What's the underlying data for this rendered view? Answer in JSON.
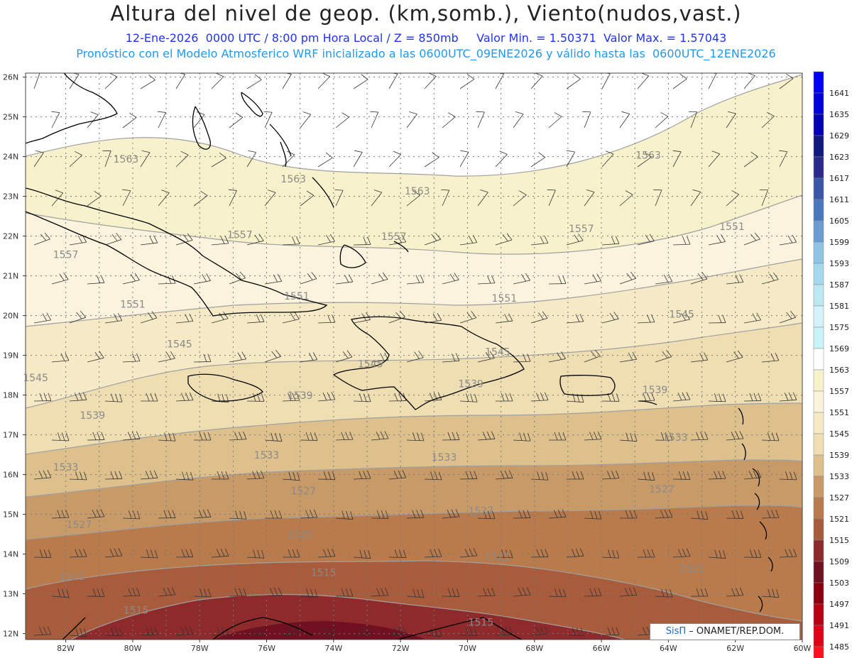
{
  "header": {
    "title": "Altura del nivel de geop. (km,somb.), Viento(nudos,vast.)",
    "line1": "12-Ene-2026  0000 UTC / 8:00 pm Hora Local / Z = 850mb     Valor Min. = 1.50371  Valor Max. = 1.57043",
    "line2": "Pronóstico con el Modelo Atmosferico WRF inicializado a las 0600UTC_09ENE2026 y válido hasta las  0600UTC_12ENE2026"
  },
  "axes": {
    "lat_labels": [
      "26N",
      "25N",
      "24N",
      "23N",
      "22N",
      "21N",
      "20N",
      "19N",
      "18N",
      "17N",
      "16N",
      "15N",
      "14N",
      "13N",
      "12N"
    ],
    "lon_labels": [
      "82W",
      "80W",
      "78W",
      "76W",
      "74W",
      "72W",
      "70W",
      "68W",
      "66W",
      "64W",
      "62W",
      "60W"
    ]
  },
  "contour_labels": [
    {
      "text": "1563",
      "lon": -80.2,
      "lat": 23.85
    },
    {
      "text": "1563",
      "lon": -75.2,
      "lat": 23.35
    },
    {
      "text": "1563",
      "lon": -71.5,
      "lat": 23.05
    },
    {
      "text": "1563",
      "lon": -64.6,
      "lat": 23.95
    },
    {
      "text": "1557",
      "lon": -76.8,
      "lat": 21.95
    },
    {
      "text": "1557",
      "lon": -82.0,
      "lat": 21.45
    },
    {
      "text": "1557",
      "lon": -72.2,
      "lat": 21.9
    },
    {
      "text": "1557",
      "lon": -66.6,
      "lat": 22.1
    },
    {
      "text": "1551",
      "lon": -62.1,
      "lat": 22.15
    },
    {
      "text": "1551",
      "lon": -80.0,
      "lat": 20.2
    },
    {
      "text": "1551",
      "lon": -75.1,
      "lat": 20.4
    },
    {
      "text": "1551",
      "lon": -68.9,
      "lat": 20.35
    },
    {
      "text": "1545",
      "lon": -63.6,
      "lat": 19.95
    },
    {
      "text": "1545",
      "lon": -78.6,
      "lat": 19.2
    },
    {
      "text": "1545",
      "lon": -82.9,
      "lat": 18.35
    },
    {
      "text": "1545",
      "lon": -72.9,
      "lat": 18.7
    },
    {
      "text": "1545",
      "lon": -69.1,
      "lat": 19.0
    },
    {
      "text": "1539",
      "lon": -75.0,
      "lat": 17.9
    },
    {
      "text": "1539",
      "lon": -81.2,
      "lat": 17.4
    },
    {
      "text": "1539",
      "lon": -69.9,
      "lat": 18.2
    },
    {
      "text": "1539",
      "lon": -64.4,
      "lat": 18.05
    },
    {
      "text": "1533",
      "lon": -76.0,
      "lat": 16.4
    },
    {
      "text": "1533",
      "lon": -82.0,
      "lat": 16.1
    },
    {
      "text": "1533",
      "lon": -70.7,
      "lat": 16.35
    },
    {
      "text": "1533",
      "lon": -63.8,
      "lat": 16.85
    },
    {
      "text": "1527",
      "lon": -74.9,
      "lat": 15.5
    },
    {
      "text": "1527",
      "lon": -81.6,
      "lat": 14.65
    },
    {
      "text": "1527",
      "lon": -69.6,
      "lat": 15.0
    },
    {
      "text": "1527",
      "lon": -64.2,
      "lat": 15.55
    },
    {
      "text": "1521",
      "lon": -75.0,
      "lat": 14.4
    },
    {
      "text": "1521",
      "lon": -81.8,
      "lat": 13.35
    },
    {
      "text": "1521",
      "lon": -69.1,
      "lat": 13.85
    },
    {
      "text": "1521",
      "lon": -63.3,
      "lat": 13.55
    },
    {
      "text": "1515",
      "lon": -74.3,
      "lat": 13.45
    },
    {
      "text": "1515",
      "lon": -79.9,
      "lat": 12.5
    },
    {
      "text": "1515",
      "lon": -69.6,
      "lat": 12.2
    }
  ],
  "colorbar": [
    {
      "label": "1641",
      "color": "#0000f8"
    },
    {
      "label": "1635",
      "color": "#0000dc"
    },
    {
      "label": "1629",
      "color": "#0000b4"
    },
    {
      "label": "1623",
      "color": "#121a80"
    },
    {
      "label": "1617",
      "color": "#2a2a8c"
    },
    {
      "label": "1611",
      "color": "#3a56a8"
    },
    {
      "label": "1605",
      "color": "#4a78be"
    },
    {
      "label": "1599",
      "color": "#6a9ed2"
    },
    {
      "label": "1593",
      "color": "#8ec4e4"
    },
    {
      "label": "1587",
      "color": "#a4d8ec"
    },
    {
      "label": "1581",
      "color": "#bce8f2"
    },
    {
      "label": "1575",
      "color": "#d4f2f8"
    },
    {
      "label": "1569",
      "color": "#c8f4f8"
    },
    {
      "label": "1563",
      "color": "#ffffff"
    },
    {
      "label": "1557",
      "color": "#f8f2cc"
    },
    {
      "label": "1551",
      "color": "#fbf3dd"
    },
    {
      "label": "1545",
      "color": "#f5eac5"
    },
    {
      "label": "1539",
      "color": "#eedeb2"
    },
    {
      "label": "1533",
      "color": "#ddc08c"
    },
    {
      "label": "1527",
      "color": "#c89a68"
    },
    {
      "label": "1521",
      "color": "#b97a4c"
    },
    {
      "label": "1515",
      "color": "#a85c3c"
    },
    {
      "label": "1509",
      "color": "#8e2a2c"
    },
    {
      "label": "1503",
      "color": "#701020"
    },
    {
      "label": "1497",
      "color": "#8a0010"
    },
    {
      "label": "1491",
      "color": "#b80012"
    },
    {
      "label": "1485",
      "color": "#e00018"
    },
    {
      "label": "",
      "color": "#ff1020"
    }
  ],
  "credit": {
    "brand": "SisΠ",
    "text": " – ONAMET/REP.DOM."
  }
}
